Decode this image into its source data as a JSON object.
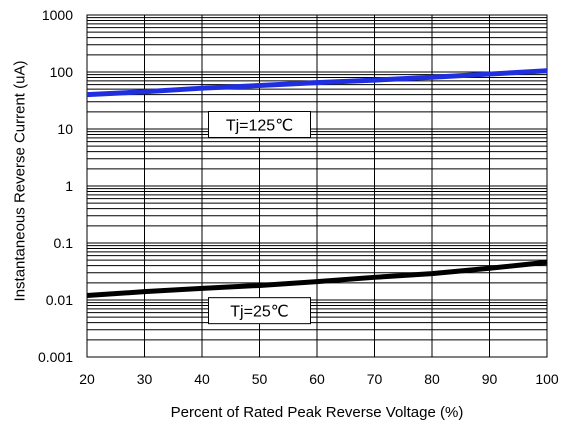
{
  "chart_data": {
    "type": "line",
    "title": "",
    "xlabel": "Percent of Rated Peak Reverse Voltage (%)",
    "ylabel": "Instantaneous Reverse Current (uA)",
    "xlim": [
      20,
      100
    ],
    "ylim": [
      0.001,
      1000
    ],
    "yscale": "log",
    "grid": true,
    "x_ticks": [
      "20",
      "30",
      "40",
      "50",
      "60",
      "70",
      "80",
      "90",
      "100"
    ],
    "y_ticks": [
      "0.001",
      "0.01",
      "0.1",
      "1",
      "10",
      "100",
      "1000"
    ],
    "series": [
      {
        "name": "Tj=125℃",
        "color": "#1f2fe0",
        "x": [
          20,
          30,
          40,
          50,
          60,
          70,
          80,
          90,
          100
        ],
        "y": [
          40,
          45,
          52,
          58,
          65,
          72,
          81,
          92,
          105
        ]
      },
      {
        "name": "Tj=25℃",
        "color": "#000000",
        "x": [
          20,
          30,
          40,
          50,
          60,
          70,
          80,
          90,
          100
        ],
        "y": [
          0.012,
          0.014,
          0.016,
          0.018,
          0.021,
          0.025,
          0.029,
          0.036,
          0.046
        ]
      }
    ],
    "annotations": [
      {
        "text": "Tj=125℃",
        "x": 50,
        "y": 12
      },
      {
        "text": "Tj=25℃",
        "x": 50,
        "y": 0.0065
      }
    ]
  }
}
